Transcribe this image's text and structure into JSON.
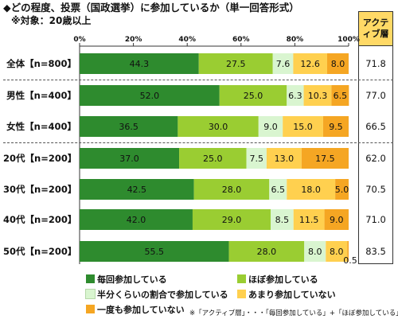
{
  "title": "◆どの程度、投票（国政選挙）に参加しているか（単一回答形式）",
  "subtitle": "※対象：20歳以上",
  "active_header": "アクティブ層",
  "footnote": "※「アクティブ層」・・・「毎回参加している」+「ほぼ参加している」",
  "colors": {
    "every_time": "#2e8b2e",
    "almost": "#9acd32",
    "half": "#d9f5d0",
    "rarely": "#ffd04f",
    "never": "#f5a623"
  },
  "chart_data": {
    "type": "bar",
    "orientation": "horizontal",
    "stacked": true,
    "xlim": [
      0,
      100
    ],
    "x_ticks": [
      "0%",
      "20%",
      "40%",
      "60%",
      "80%",
      "100%"
    ],
    "categories": [
      "全体【n=800】",
      "男性【n=400】",
      "女性【n=400】",
      "20代【n=200】",
      "30代【n=200】",
      "40代【n=200】",
      "50代【n=200】"
    ],
    "series": [
      {
        "name": "毎回参加している",
        "values": [
          44.3,
          52.0,
          36.5,
          37.0,
          42.5,
          42.0,
          55.5
        ]
      },
      {
        "name": "ほぼ参加している",
        "values": [
          27.5,
          25.0,
          30.0,
          25.0,
          28.0,
          29.0,
          28.0
        ]
      },
      {
        "name": "半分くらいの割合で参加している",
        "values": [
          7.6,
          6.3,
          9.0,
          7.5,
          6.5,
          8.5,
          8.0
        ]
      },
      {
        "name": "あまり参加していない",
        "values": [
          12.6,
          10.3,
          15.0,
          13.0,
          18.0,
          11.5,
          8.0
        ]
      },
      {
        "name": "一度も参加していない",
        "values": [
          8.0,
          6.5,
          9.5,
          17.5,
          5.0,
          9.0,
          0.5
        ]
      }
    ],
    "active_values": [
      71.8,
      77.0,
      66.5,
      62.0,
      70.5,
      71.0,
      83.5
    ]
  }
}
